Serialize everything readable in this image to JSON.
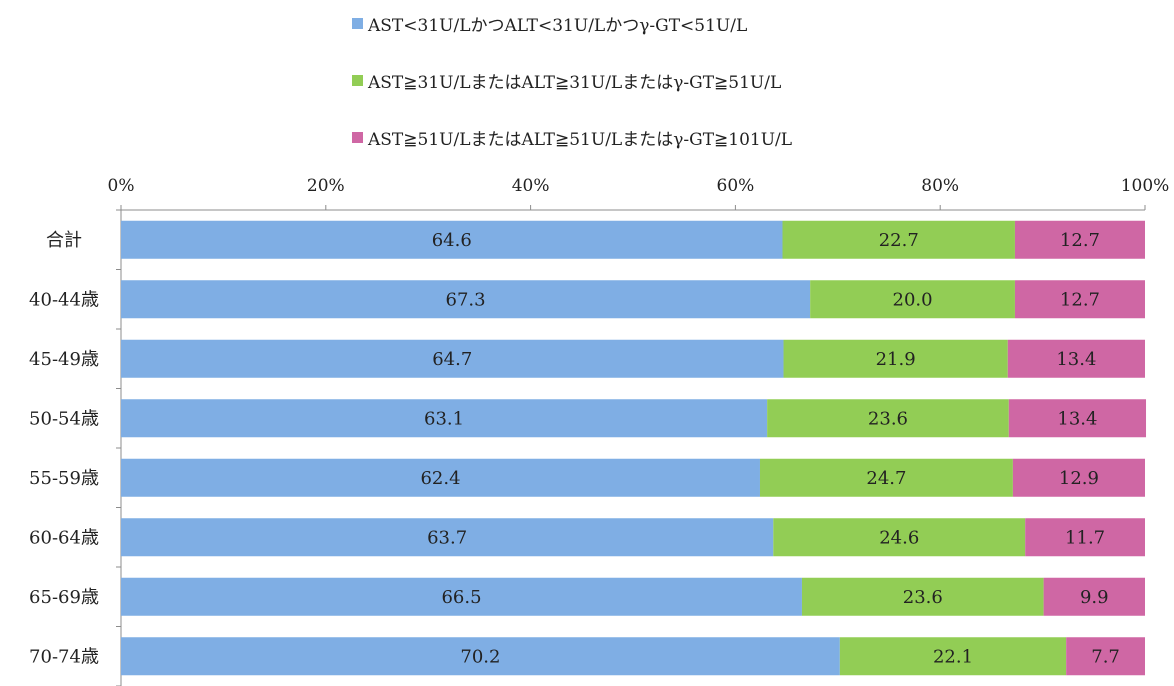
{
  "chart_data": {
    "type": "bar",
    "orientation": "horizontal",
    "stacked": true,
    "percent": true,
    "categories": [
      "合計",
      "40-44歳",
      "45-49歳",
      "50-54歳",
      "55-59歳",
      "60-64歳",
      "65-69歳",
      "70-74歳"
    ],
    "series": [
      {
        "name": "AST<31U/LかつALT<31U/Lかつγ-GT<51U/L",
        "color": "#7faee4",
        "values": [
          64.6,
          67.3,
          64.7,
          63.1,
          62.4,
          63.7,
          66.5,
          70.2
        ],
        "labels": [
          "64.6",
          "67.3",
          "64.7",
          "63.1",
          "62.4",
          "63.7",
          "66.5",
          "70.2"
        ]
      },
      {
        "name": "AST≧31U/LまたはALT≧31U/Lまたはγ-GT≧51U/L",
        "color": "#92cd55",
        "values": [
          22.7,
          20.0,
          21.9,
          23.6,
          24.7,
          24.6,
          23.6,
          22.1
        ],
        "labels": [
          "22.7",
          "20.0",
          "21.9",
          "23.6",
          "24.7",
          "24.6",
          "23.6",
          "22.1"
        ]
      },
      {
        "name": "AST≧51U/LまたはALT≧51U/Lまたはγ-GT≧101U/L",
        "color": "#cf67a4",
        "values": [
          12.7,
          12.7,
          13.4,
          13.4,
          12.9,
          11.7,
          9.9,
          7.7
        ],
        "labels": [
          "12.7",
          "12.7",
          "13.4",
          "13.4",
          "12.9",
          "11.7",
          "9.9",
          "7.7"
        ]
      }
    ],
    "xlim": [
      0,
      100
    ],
    "xticks": [
      "0%",
      "20%",
      "40%",
      "60%",
      "80%",
      "100%"
    ],
    "xaxis_position": "top",
    "legend_position": "top",
    "grid": false
  }
}
